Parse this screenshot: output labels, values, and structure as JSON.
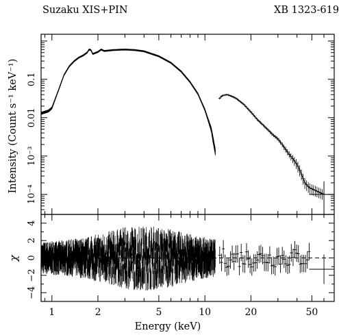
{
  "header": {
    "left": "Suzaku XIS+PIN",
    "right": "XB 1323-619"
  },
  "chart_data": {
    "type": "scatter",
    "xlabel": "Energy (keV)",
    "xscale": "log",
    "xlim": [
      0.85,
      70
    ],
    "xticks": [
      1,
      2,
      5,
      10,
      20,
      50
    ],
    "panels": [
      {
        "name": "spectrum",
        "ylabel": "Intensity (Count s⁻¹ keV⁻¹)",
        "yscale": "log",
        "ylim": [
          3e-05,
          1.5
        ],
        "ytick_labels": [
          {
            "value": 0.0001,
            "label": "10⁻⁴"
          },
          {
            "value": 0.001,
            "label": "10⁻³"
          },
          {
            "value": 0.01,
            "label": "0.01"
          },
          {
            "value": 0.1,
            "label": "0.1"
          }
        ],
        "series": [
          {
            "x": [
              0.85,
              0.95,
              1.0,
              1.1,
              1.2,
              1.3,
              1.4,
              1.5,
              1.6,
              1.7,
              1.75,
              1.8,
              1.85,
              1.9,
              2.0,
              2.1,
              2.2,
              2.5,
              3.0,
              3.5,
              4.0,
              5.0,
              6.0,
              7.0,
              8.0,
              9.0,
              10.0,
              11.0,
              11.7
            ],
            "y": [
              0.013,
              0.015,
              0.018,
              0.05,
              0.13,
              0.22,
              0.3,
              0.37,
              0.42,
              0.5,
              0.6,
              0.58,
              0.46,
              0.48,
              0.52,
              0.6,
              0.55,
              0.58,
              0.6,
              0.58,
              0.54,
              0.4,
              0.27,
              0.16,
              0.085,
              0.042,
              0.016,
              0.005,
              0.0013
            ]
          },
          {
            "x": [
              12.5,
              13.0,
              14.0,
              15.0,
              16.0,
              18.0,
              20.0,
              22.0,
              25.0,
              28.0,
              30.0,
              32.0,
              35.0,
              38.0,
              40.0,
              42.0,
              45.0,
              48.0,
              60.0
            ],
            "y": [
              0.032,
              0.038,
              0.04,
              0.036,
              0.032,
              0.022,
              0.014,
              0.009,
              0.0055,
              0.0035,
              0.0028,
              0.002,
              0.0012,
              0.0008,
              0.0006,
              0.0004,
              0.0002,
              0.00015,
              0.0001
            ]
          }
        ]
      },
      {
        "name": "residuals",
        "ylabel": "χ",
        "ylim": [
          -5,
          5
        ],
        "yticks": [
          -4,
          -2,
          0,
          2,
          4
        ],
        "note_zero_line": "dashed"
      }
    ]
  }
}
